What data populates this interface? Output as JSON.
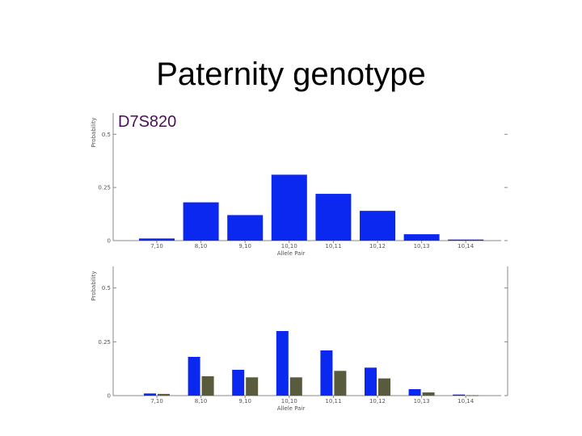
{
  "slide": {
    "title": "Paternity genotype",
    "locus": "D7S820"
  },
  "colors": {
    "primary_bar": "#0a28f0",
    "secondary_bar": "#5a5a3c",
    "axis": "#888888",
    "locus_text": "#4b0f5a"
  },
  "chart_data": [
    {
      "type": "bar",
      "categories": [
        "7,10",
        "8,10",
        "9,10",
        "10,10",
        "10,11",
        "10,12",
        "10,13",
        "10,14"
      ],
      "values": [
        0.01,
        0.18,
        0.12,
        0.31,
        0.22,
        0.14,
        0.03,
        0.005
      ],
      "xlabel": "Allele Pair",
      "ylabel": "Probability",
      "yticks": [
        0,
        0.25,
        0.5
      ],
      "ytick_labels": [
        "0",
        "0.25",
        "0.5"
      ],
      "ylim": [
        0,
        0.6
      ],
      "grid": false
    },
    {
      "type": "bar",
      "categories": [
        "7,10",
        "8,10",
        "9,10",
        "10,10",
        "10,11",
        "10,12",
        "10,13",
        "10,14"
      ],
      "series": [
        {
          "values": [
            0.01,
            0.18,
            0.12,
            0.3,
            0.21,
            0.13,
            0.03,
            0.005
          ]
        },
        {
          "values": [
            0.008,
            0.09,
            0.085,
            0.085,
            0.115,
            0.08,
            0.015,
            0.002
          ]
        }
      ],
      "xlabel": "Allele Pair",
      "ylabel": "Probability",
      "yticks": [
        0,
        0.25,
        0.5
      ],
      "ytick_labels": [
        "0",
        "0.25",
        "0.5"
      ],
      "ylim": [
        0,
        0.6
      ],
      "grid": false
    }
  ]
}
